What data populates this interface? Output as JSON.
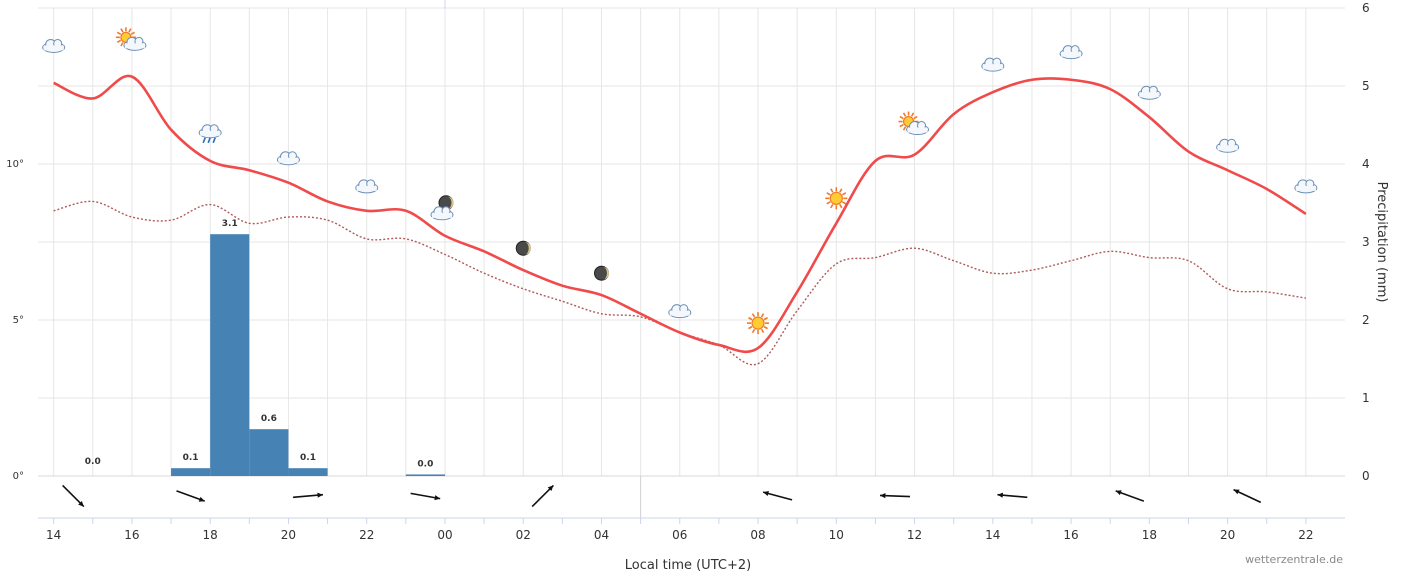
{
  "chart_data": {
    "type": "line",
    "title": "",
    "xlabel": "Local time (UTC+2)",
    "ylabel_right": "Precipitation (mm)",
    "credit": "wetterzentrale.de",
    "x_ticks": [
      "14",
      "16",
      "18",
      "20",
      "22",
      "00",
      "02",
      "04",
      "06",
      "08",
      "10",
      "12",
      "14",
      "16",
      "18",
      "20",
      "22"
    ],
    "x_hours": [
      14,
      15,
      16,
      17,
      18,
      19,
      20,
      21,
      22,
      23,
      24,
      25,
      26,
      27,
      28,
      29,
      30,
      31,
      32,
      33,
      34,
      35,
      36,
      37,
      38,
      39,
      40,
      41,
      42,
      43,
      44,
      45,
      46
    ],
    "x_range_hours": [
      13.6,
      47
    ],
    "temp_axis": {
      "ticks": [
        "0°",
        "5°",
        "10°"
      ],
      "tick_values": [
        0,
        5,
        10
      ],
      "range": [
        0,
        15
      ]
    },
    "precip_axis": {
      "ticks": [
        "0",
        "1",
        "2",
        "3",
        "4",
        "5",
        "6"
      ],
      "tick_values": [
        0,
        1,
        2,
        3,
        4,
        5,
        6
      ],
      "range": [
        0,
        6
      ]
    },
    "grid": true,
    "series": [
      {
        "type": "line",
        "axis": "temperature",
        "color": "#f04a4a",
        "style": "solid",
        "values": [
          12.6,
          12.1,
          12.8,
          11.1,
          10.1,
          9.8,
          9.4,
          8.8,
          8.5,
          8.5,
          7.7,
          7.2,
          6.6,
          6.1,
          5.8,
          5.2,
          4.6,
          4.2,
          4.1,
          5.9,
          8.1,
          10.1,
          10.3,
          11.6,
          12.3,
          12.7,
          12.7,
          12.4,
          11.5,
          10.4,
          9.8,
          9.2,
          8.4
        ]
      },
      {
        "type": "line",
        "axis": "temperature",
        "color": "#b05a5a",
        "style": "dotted",
        "values": [
          8.5,
          8.8,
          8.3,
          8.2,
          8.7,
          8.1,
          8.3,
          8.2,
          7.6,
          7.6,
          7.1,
          6.5,
          6.0,
          5.6,
          5.2,
          5.1,
          4.6,
          4.2,
          3.6,
          5.3,
          6.8,
          7.0,
          7.3,
          6.9,
          6.5,
          6.6,
          6.9,
          7.2,
          7.0,
          6.9,
          6.0,
          5.9,
          5.7
        ]
      }
    ],
    "precipitation": {
      "color": "#4682b4",
      "bars": [
        {
          "start": 17,
          "end": 18,
          "value": 0.1,
          "label": "0.1"
        },
        {
          "start": 18,
          "end": 19,
          "value": 3.1,
          "label": "3.1"
        },
        {
          "start": 19,
          "end": 20,
          "value": 0.6,
          "label": "0.6"
        },
        {
          "start": 20,
          "end": 21,
          "value": 0.1,
          "label": "0.1"
        },
        {
          "start": 23,
          "end": 24,
          "value": 0.0,
          "label": "0.0"
        }
      ],
      "zero_labels": [
        {
          "hour": 15,
          "label": "0.0"
        }
      ]
    },
    "weather_icons": [
      {
        "hour": 14,
        "temp": 13.8,
        "type": "cloudy"
      },
      {
        "hour": 16,
        "temp": 13.9,
        "type": "partly-sunny"
      },
      {
        "hour": 18,
        "temp": 11.0,
        "type": "rain"
      },
      {
        "hour": 20,
        "temp": 10.2,
        "type": "cloudy"
      },
      {
        "hour": 22,
        "temp": 9.3,
        "type": "cloudy"
      },
      {
        "hour": 24,
        "temp": 8.5,
        "type": "night-cloudy"
      },
      {
        "hour": 26,
        "temp": 7.3,
        "type": "moon"
      },
      {
        "hour": 28,
        "temp": 6.5,
        "type": "moon"
      },
      {
        "hour": 30,
        "temp": 5.3,
        "type": "cloudy"
      },
      {
        "hour": 32,
        "temp": 4.9,
        "type": "sunny"
      },
      {
        "hour": 34,
        "temp": 8.9,
        "type": "sunny"
      },
      {
        "hour": 36,
        "temp": 11.2,
        "type": "partly-sunny"
      },
      {
        "hour": 38,
        "temp": 13.2,
        "type": "cloudy"
      },
      {
        "hour": 40,
        "temp": 13.6,
        "type": "cloudy"
      },
      {
        "hour": 42,
        "temp": 12.3,
        "type": "cloudy"
      },
      {
        "hour": 44,
        "temp": 10.6,
        "type": "cloudy"
      },
      {
        "hour": 46,
        "temp": 9.3,
        "type": "cloudy"
      }
    ],
    "wind_arrows": [
      {
        "hour": 14.5,
        "direction_deg": 135
      },
      {
        "hour": 17.5,
        "direction_deg": 110
      },
      {
        "hour": 20.5,
        "direction_deg": 85
      },
      {
        "hour": 23.5,
        "direction_deg": 100
      },
      {
        "hour": 26.5,
        "direction_deg": 45
      },
      {
        "hour": 32.5,
        "direction_deg": 285
      },
      {
        "hour": 35.5,
        "direction_deg": 272
      },
      {
        "hour": 38.5,
        "direction_deg": 275
      },
      {
        "hour": 41.5,
        "direction_deg": 290
      },
      {
        "hour": 44.5,
        "direction_deg": 295
      }
    ]
  }
}
